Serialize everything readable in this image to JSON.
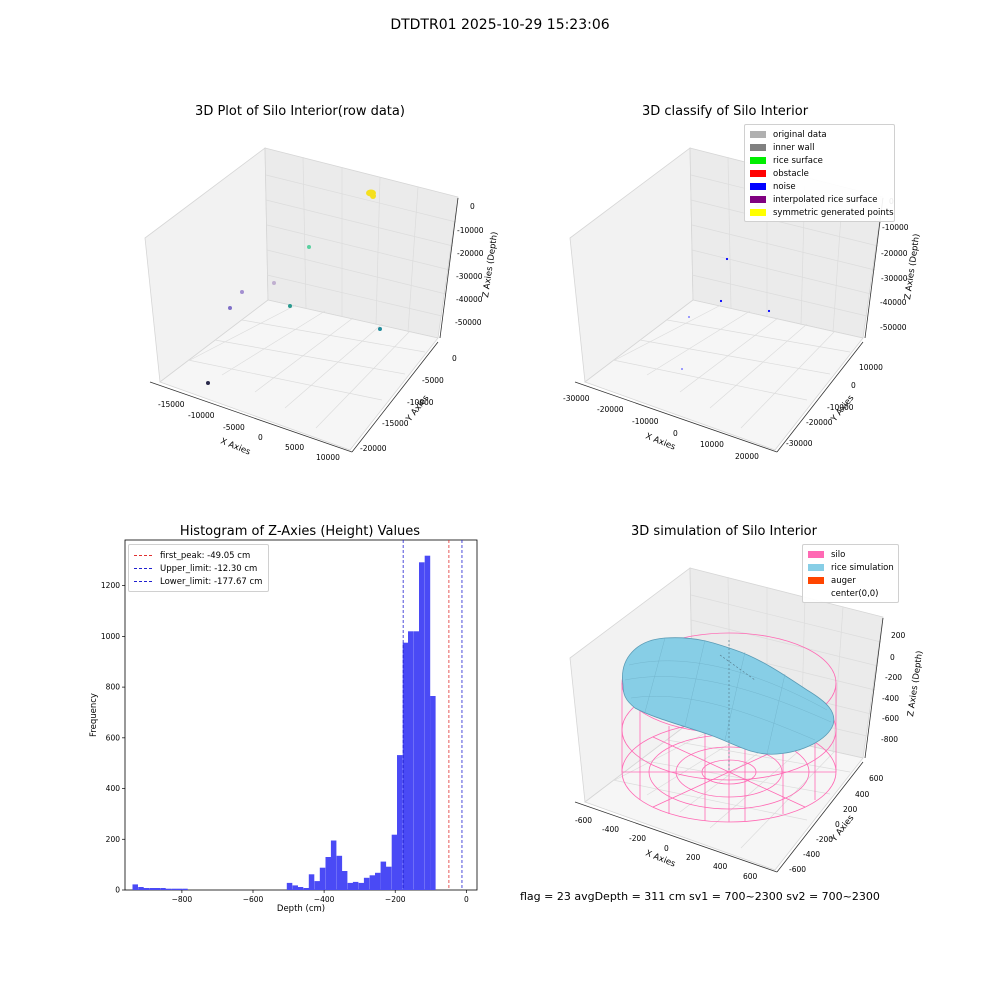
{
  "figure": {
    "title": "DTDTR01 2025-10-29 15:23:06",
    "footer": "flag = 23   avgDepth = 311 cm   sv1 = 700~2300   sv2 = 700~2300"
  },
  "colors": {
    "hist_bar": "#4a4af5",
    "first_peak_line": "#e03030",
    "limit_line": "#2020d0",
    "silo": "#ff69b4",
    "rice": "#87cee6",
    "auger": "#ff4500"
  },
  "chart_data": [
    {
      "type": "scatter",
      "subtype": "3d",
      "title": "3D Plot of Silo Interior(row data)",
      "xlabel": "X Axies",
      "ylabel": "Y Axies",
      "zlabel": "Z Axies (Depth)",
      "x_ticks": [
        "-15000",
        "-10000",
        "-5000",
        "0",
        "5000",
        "10000"
      ],
      "y_ticks": [
        "0",
        "-5000",
        "-10000",
        "-15000",
        "-20000"
      ],
      "z_ticks": [
        "0",
        "-10000",
        "-20000",
        "-30000",
        "-40000",
        "-50000"
      ],
      "grid": true,
      "points_note": "cluster near z≈0 (yellow) plus sparse outliers"
    },
    {
      "type": "scatter",
      "subtype": "3d",
      "title": "3D classify of Silo Interior",
      "xlabel": "X Axies",
      "ylabel": "Y Axies",
      "zlabel": "Z Axies (Depth)",
      "x_ticks": [
        "-30000",
        "-20000",
        "-10000",
        "0",
        "10000",
        "20000"
      ],
      "y_ticks": [
        "10000",
        "0",
        "-10000",
        "-20000",
        "-30000"
      ],
      "z_ticks": [
        "0",
        "-10000",
        "-20000",
        "-30000",
        "-40000",
        "-50000"
      ],
      "grid": true,
      "legend_position": "top-right",
      "legend": [
        {
          "label": "original data",
          "color": "#b0b0b0"
        },
        {
          "label": "inner wall",
          "color": "#808080"
        },
        {
          "label": "rice surface",
          "color": "#00ee00"
        },
        {
          "label": "obstacle",
          "color": "#ff0000"
        },
        {
          "label": "noise",
          "color": "#0000ff"
        },
        {
          "label": "interpolated rice surface",
          "color": "#800080"
        },
        {
          "label": "symmetric generated points",
          "color": "#ffff00"
        }
      ]
    },
    {
      "type": "bar",
      "subtype": "histogram",
      "title": "Histogram of Z-Axies (Height) Values",
      "xlabel": "Depth (cm)",
      "ylabel": "Frequency",
      "xlim": [
        -960,
        30
      ],
      "ylim": [
        0,
        1380
      ],
      "x_ticks": [
        -800,
        -600,
        -400,
        -200,
        0
      ],
      "x_tick_labels": [
        "−800",
        "−600",
        "−400",
        "−200",
        "0"
      ],
      "y_ticks": [
        0,
        200,
        400,
        600,
        800,
        1000,
        1200
      ],
      "bin_width": 15.5,
      "bins": [
        [
          -939,
          22
        ],
        [
          -923,
          12
        ],
        [
          -908,
          8
        ],
        [
          -892,
          8
        ],
        [
          -877,
          8
        ],
        [
          -861,
          8
        ],
        [
          -846,
          5
        ],
        [
          -830,
          5
        ],
        [
          -815,
          5
        ],
        [
          -799,
          5
        ],
        [
          -505,
          28
        ],
        [
          -489,
          18
        ],
        [
          -474,
          12
        ],
        [
          -458,
          8
        ],
        [
          -443,
          62
        ],
        [
          -427,
          35
        ],
        [
          -412,
          88
        ],
        [
          -396,
          130
        ],
        [
          -381,
          195
        ],
        [
          -365,
          135
        ],
        [
          -350,
          75
        ],
        [
          -334,
          28
        ],
        [
          -319,
          32
        ],
        [
          -303,
          28
        ],
        [
          -288,
          48
        ],
        [
          -272,
          58
        ],
        [
          -257,
          68
        ],
        [
          -241,
          112
        ],
        [
          -226,
          92
        ],
        [
          -210,
          218
        ],
        [
          -195,
          532
        ],
        [
          -179,
          975
        ],
        [
          -164,
          1020
        ],
        [
          -148,
          1020
        ],
        [
          -133,
          1292
        ],
        [
          -117,
          1318
        ],
        [
          -102,
          765
        ]
      ],
      "vlines": [
        {
          "label": "first_peak: -49.05 cm",
          "x": -49.05,
          "color": "#e03030"
        },
        {
          "label": "Upper_limit: -12.30 cm",
          "x": -12.3,
          "color": "#2020d0"
        },
        {
          "label": "Lower_limit: -177.67 cm",
          "x": -177.67,
          "color": "#2020d0"
        }
      ],
      "legend_position": "top-left"
    },
    {
      "type": "area",
      "subtype": "3d-surface",
      "title": "3D simulation of Silo Interior",
      "xlabel": "X Axies",
      "ylabel": "Y Axies",
      "zlabel": "Z Axies (Depth)",
      "x_ticks": [
        "-600",
        "-400",
        "-200",
        "0",
        "200",
        "400",
        "600"
      ],
      "y_ticks": [
        "600",
        "400",
        "200",
        "0",
        "-200",
        "-400",
        "-600"
      ],
      "z_ticks": [
        "200",
        "0",
        "-200",
        "-400",
        "-600",
        "-800"
      ],
      "grid": true,
      "legend_position": "top-right",
      "legend": [
        {
          "label": "silo",
          "color": "#ff69b4"
        },
        {
          "label": "rice simulation",
          "color": "#87cee6"
        },
        {
          "label": "auger",
          "color": "#ff4500"
        },
        {
          "label": "center(0,0)",
          "color": ""
        }
      ]
    }
  ]
}
